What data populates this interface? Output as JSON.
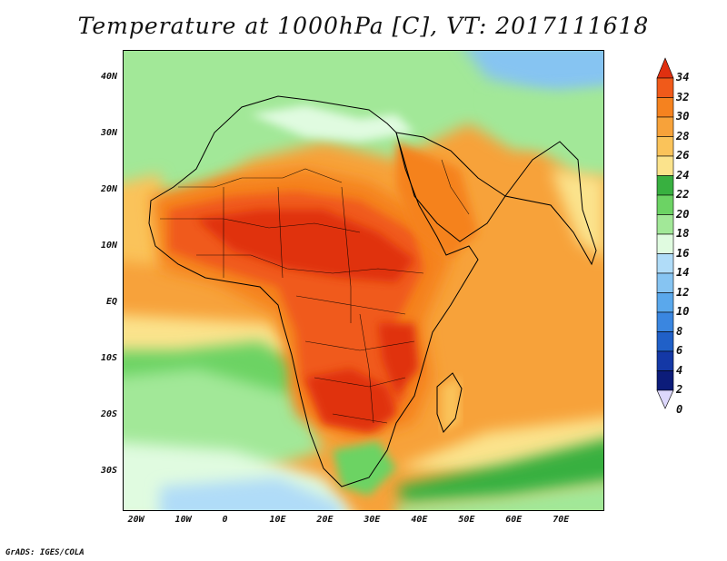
{
  "title": "Temperature at 1000hPa [C], VT: 2017111618",
  "credit": "GrADS: IGES/COLA",
  "map": {
    "lon_range": [
      -23,
      79
    ],
    "lat_range": [
      -37,
      45
    ],
    "x_ticks": [
      {
        "lon": -20,
        "label": "20W"
      },
      {
        "lon": -10,
        "label": "10W"
      },
      {
        "lon": 0,
        "label": "0"
      },
      {
        "lon": 10,
        "label": "10E"
      },
      {
        "lon": 20,
        "label": "20E"
      },
      {
        "lon": 30,
        "label": "30E"
      },
      {
        "lon": 40,
        "label": "40E"
      },
      {
        "lon": 50,
        "label": "50E"
      },
      {
        "lon": 60,
        "label": "60E"
      },
      {
        "lon": 70,
        "label": "70E"
      }
    ],
    "y_ticks": [
      {
        "lat": 40,
        "label": "40N"
      },
      {
        "lat": 30,
        "label": "30N"
      },
      {
        "lat": 20,
        "label": "20N"
      },
      {
        "lat": 10,
        "label": "10N"
      },
      {
        "lat": 0,
        "label": "EQ"
      },
      {
        "lat": -10,
        "label": "10S"
      },
      {
        "lat": -20,
        "label": "20S"
      },
      {
        "lat": -30,
        "label": "30S"
      }
    ]
  },
  "colorbar": {
    "labels": [
      "34",
      "32",
      "30",
      "28",
      "26",
      "24",
      "22",
      "20",
      "18",
      "16",
      "14",
      "12",
      "10",
      "8",
      "6",
      "4",
      "2",
      "0"
    ],
    "colors": [
      "#e03010",
      "#f05a1a",
      "#f5821f",
      "#f7a23a",
      "#fac35a",
      "#fbe38c",
      "#38b040",
      "#6cd364",
      "#a2e898",
      "#e0fbe0",
      "#b0dcf8",
      "#86c4f2",
      "#5aa8ec",
      "#3a86e0",
      "#2060c8",
      "#1438a6",
      "#0c1c7a",
      "#ddd8fc"
    ]
  }
}
